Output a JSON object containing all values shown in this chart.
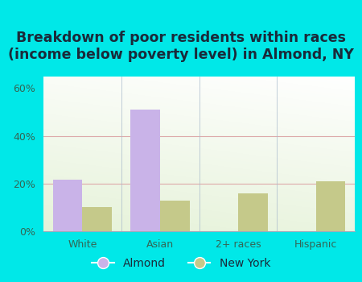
{
  "categories": [
    "White",
    "Asian",
    "2+ races",
    "Hispanic"
  ],
  "almond_values": [
    21.5,
    51.0,
    0.0,
    0.0
  ],
  "ny_values": [
    10.0,
    13.0,
    16.0,
    21.0
  ],
  "almond_color": "#c9b3e8",
  "ny_color": "#c5c98a",
  "title": "Breakdown of poor residents within races\n(income below poverty level) in Almond, NY",
  "ylim": [
    0,
    65
  ],
  "yticks": [
    0,
    20,
    40,
    60
  ],
  "ytick_labels": [
    "0%",
    "20%",
    "40%",
    "60%"
  ],
  "bar_width": 0.38,
  "background_outer": "#00e8e8",
  "legend_labels": [
    "Almond",
    "New York"
  ],
  "title_fontsize": 12.5,
  "title_color": "#1a2a3a"
}
